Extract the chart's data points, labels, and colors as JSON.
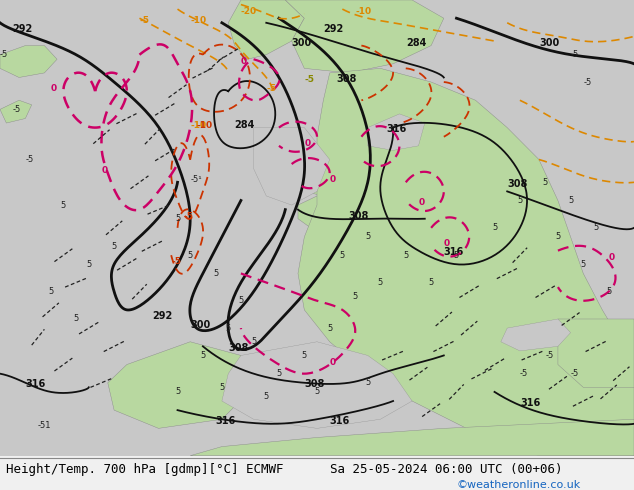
{
  "title_left": "Height/Temp. 700 hPa [gdmp][°C] ECMWF",
  "title_right": "Sa 25-05-2024 06:00 UTC (00+06)",
  "watermark": "©weatheronline.co.uk",
  "bg_color": "#f0f0f0",
  "figsize": [
    6.34,
    4.9
  ],
  "dpi": 100,
  "title_fontsize": 9.0,
  "watermark_color": "#1565c0",
  "green_land": "#b8d8a0",
  "gray_ocean": "#c8c8c8",
  "light_gray": "#d8d8d8"
}
